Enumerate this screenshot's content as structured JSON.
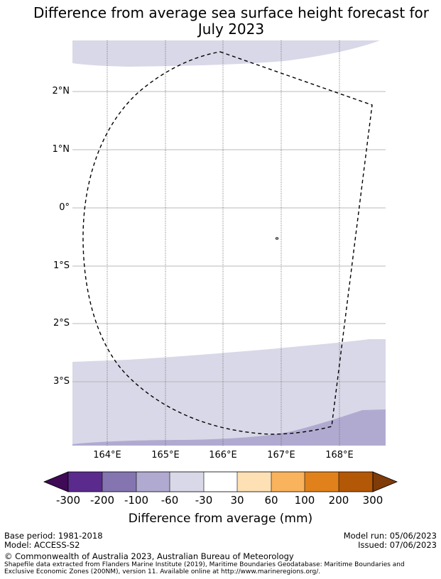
{
  "title": {
    "line1": "Difference from average sea surface height forecast for",
    "line2": "July 2023"
  },
  "map": {
    "lat_labels": [
      "2°N",
      "1°N",
      "0°",
      "1°S",
      "2°S",
      "3°S"
    ],
    "lon_labels": [
      "164°E",
      "165°E",
      "166°E",
      "167°E",
      "168°E"
    ],
    "region_boundary": "Exclusive Economic Zone (dashed)"
  },
  "colorbar": {
    "ticks": [
      "-300",
      "-200",
      "-100",
      "-60",
      "-30",
      "30",
      "60",
      "100",
      "200",
      "300"
    ],
    "colors": [
      "#3f0a56",
      "#5a2b8c",
      "#8475b0",
      "#b1aad0",
      "#d8d8e8",
      "#ffffff",
      "#fde0b4",
      "#f9b35d",
      "#e1811c",
      "#b35806",
      "#7f3b08"
    ],
    "title": "Difference from average (mm)"
  },
  "footer": {
    "base_period": "Base period: 1981-2018",
    "model": "Model: ACCESS-S2",
    "model_run": "Model run: 05/06/2023",
    "issued": "Issued: 07/06/2023",
    "copyright": "© Commonwealth of Australia 2023, Australian Bureau of Meteorology",
    "shapefile_line1": "Shapefile data extracted from Flanders Marine Institute (2019), Maritime Boundaries Geodatabase: Maritime Boundaries and",
    "shapefile_line2": "Exclusive Economic Zones (200NM), version 11. Available online at http://www.marineregions.org/."
  }
}
